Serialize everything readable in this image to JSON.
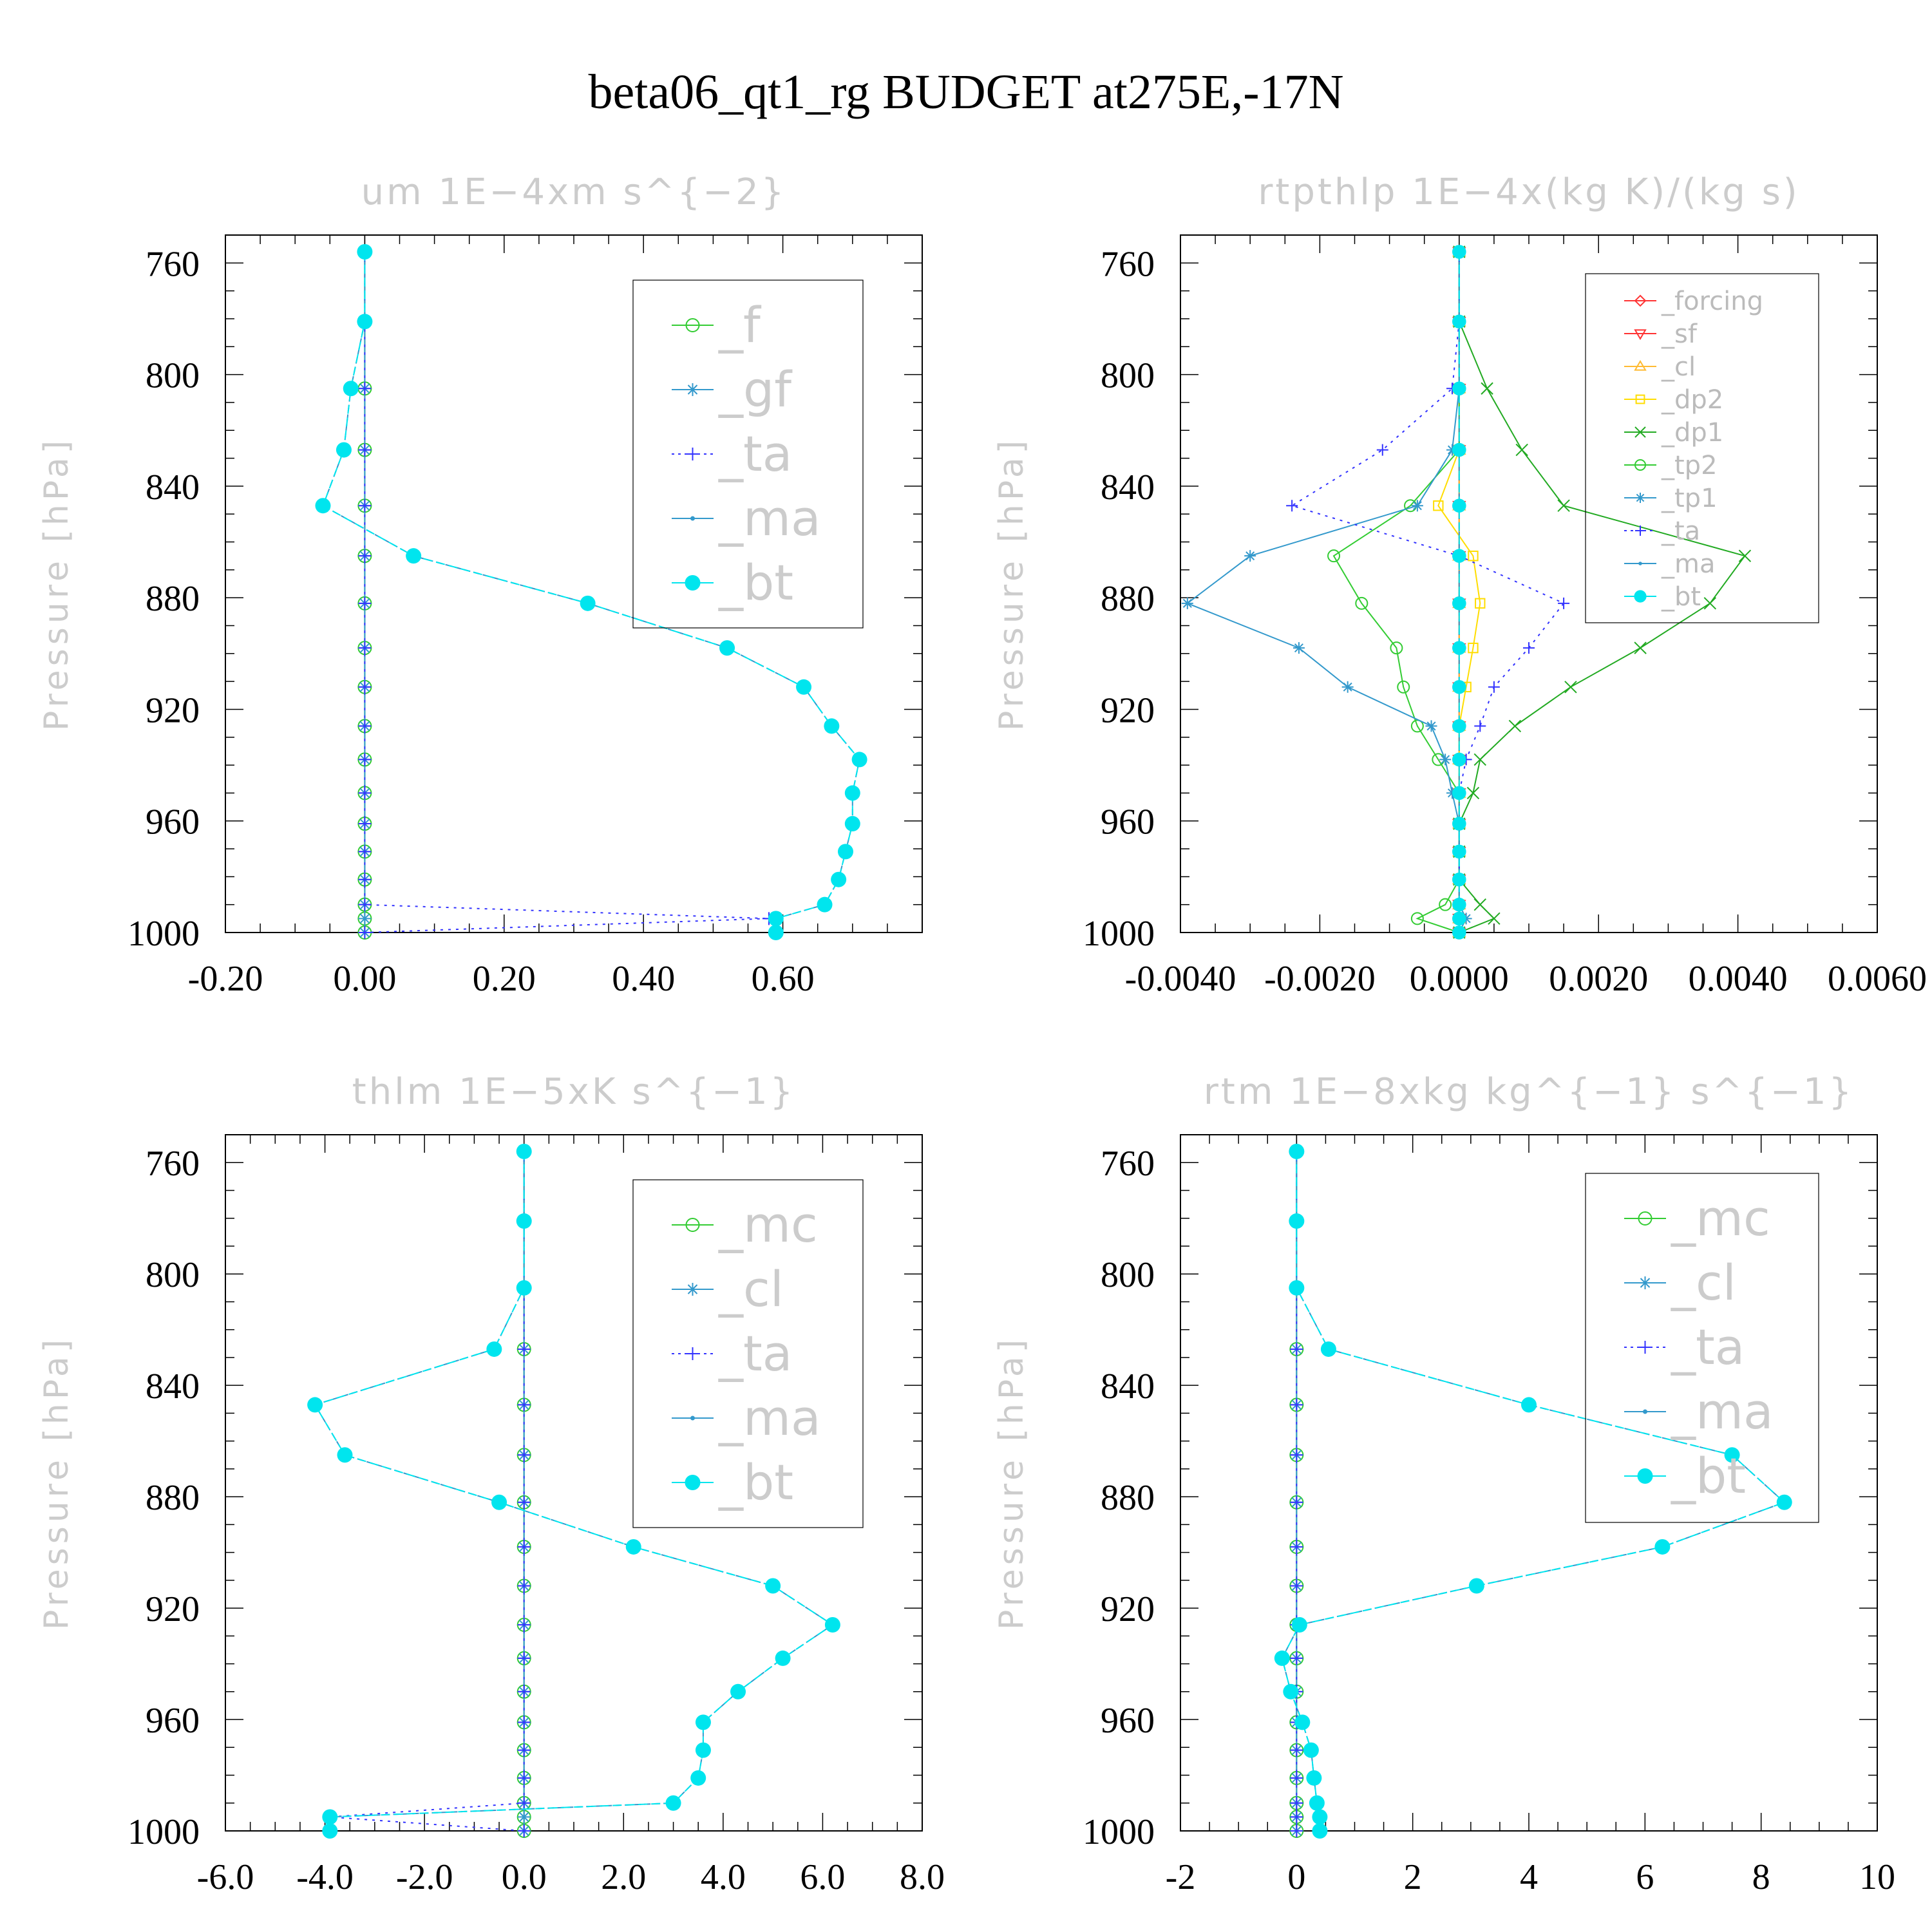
{
  "figure": {
    "title": "beta06_qt1_rg  BUDGET at275E,-17N",
    "ylabel": "Pressure [hPa]"
  },
  "colors": {
    "green": "#33cc33",
    "steelblue": "#3399cc",
    "blue": "#3333ff",
    "cyan": "#00e5ee",
    "red": "#ff3333",
    "orange": "#ffbb33",
    "yellow": "#ffdd00",
    "darkgreen": "#22aa22"
  },
  "chart_data": [
    {
      "type": "line",
      "title": "um  1E−4xm s^{−2}",
      "ylabel": "Pressure [hPa]",
      "xlim": [
        -0.2,
        0.8
      ],
      "xticks": [
        "-0.20",
        "0.00",
        "0.20",
        "0.40",
        "0.60"
      ],
      "xtick_values": [
        -0.2,
        0.0,
        0.2,
        0.4,
        0.6
      ],
      "ylim": [
        750,
        1000
      ],
      "yticks": [
        "760",
        "800",
        "840",
        "880",
        "920",
        "960",
        "1000"
      ],
      "y": [
        756,
        781,
        805,
        827,
        847,
        865,
        882,
        898,
        912,
        926,
        938,
        950,
        961,
        971,
        981,
        990,
        995,
        1000
      ],
      "legend_size": "big",
      "series": [
        {
          "name": "_f",
          "color": "#33cc33",
          "marker": "circle",
          "values": [
            0,
            0,
            0,
            0,
            0,
            0,
            0,
            0,
            0,
            0,
            0,
            0,
            0,
            0,
            0,
            0,
            0,
            0
          ]
        },
        {
          "name": "_gf",
          "color": "#3399cc",
          "marker": "star",
          "values": [
            0,
            0,
            0,
            0,
            0,
            0,
            0,
            0,
            0,
            0,
            0,
            0,
            0,
            0,
            0,
            0,
            0,
            0
          ]
        },
        {
          "name": "_ta",
          "color": "#3333ff",
          "marker": "plus",
          "dash": "dot",
          "values": [
            0,
            0,
            0,
            0,
            0,
            0,
            0,
            0,
            0,
            0,
            0,
            0,
            0,
            0,
            0,
            0,
            0.58,
            0
          ]
        },
        {
          "name": "_ma",
          "color": "#3399cc",
          "marker": "dot",
          "values": [
            0,
            0,
            -0.02,
            -0.03,
            -0.06,
            0.07,
            0.32,
            0.52,
            0.63,
            0.67,
            0.71,
            0.7,
            0.7,
            0.69,
            0.68,
            0.66,
            0.59,
            0.59
          ]
        },
        {
          "name": "_bt",
          "color": "#00e5ee",
          "marker": "filled",
          "values": [
            0,
            0,
            -0.02,
            -0.03,
            -0.06,
            0.07,
            0.32,
            0.52,
            0.63,
            0.67,
            0.71,
            0.7,
            0.7,
            0.69,
            0.68,
            0.66,
            0.59,
            0.59
          ]
        }
      ]
    },
    {
      "type": "line",
      "title": "rtpthlp  1E−4x(kg K)/(kg s)",
      "ylabel": "Pressure [hPa]",
      "xlim": [
        -0.004,
        0.006
      ],
      "xticks": [
        "-0.0040",
        "-0.0020",
        "0.0000",
        "0.0020",
        "0.0040",
        "0.0060"
      ],
      "xtick_values": [
        -0.004,
        -0.002,
        0.0,
        0.002,
        0.004,
        0.006
      ],
      "ylim": [
        750,
        1000
      ],
      "yticks": [
        "760",
        "800",
        "840",
        "880",
        "920",
        "960",
        "1000"
      ],
      "y": [
        756,
        781,
        805,
        827,
        847,
        865,
        882,
        898,
        912,
        926,
        938,
        950,
        961,
        971,
        981,
        990,
        995,
        1000
      ],
      "legend_size": "small",
      "series": [
        {
          "name": "_forcing",
          "color": "#ff3333",
          "marker": "diamond",
          "values": [
            0,
            0,
            0,
            0,
            0,
            0,
            0,
            0,
            0,
            0,
            0,
            0,
            0,
            0,
            0,
            0,
            0,
            0
          ]
        },
        {
          "name": "_sf",
          "color": "#ff3333",
          "marker": "tri-down",
          "values": [
            0,
            0,
            0,
            0,
            0,
            0,
            0,
            0,
            0,
            0,
            0,
            0,
            0,
            0,
            0,
            0,
            0,
            0
          ]
        },
        {
          "name": "_cl",
          "color": "#ffbb33",
          "marker": "tri-up",
          "values": [
            0,
            0,
            0,
            0,
            0,
            0,
            0,
            0,
            0,
            0,
            0,
            0,
            0,
            0,
            0,
            0,
            0,
            0
          ]
        },
        {
          "name": "_dp2",
          "color": "#ffdd00",
          "marker": "square",
          "values": [
            0,
            0,
            0,
            0,
            -0.0003,
            0.0002,
            0.0003,
            0.0002,
            0.0001,
            0,
            0,
            0,
            0,
            0,
            0,
            0,
            0,
            0
          ]
        },
        {
          "name": "_dp1",
          "color": "#22aa22",
          "marker": "x",
          "values": [
            0,
            0,
            0.0004,
            0.0009,
            0.0015,
            0.0041,
            0.0036,
            0.0026,
            0.0016,
            0.0008,
            0.0003,
            0.0002,
            0,
            0,
            0,
            0.0003,
            0.0005,
            0
          ]
        },
        {
          "name": "_tp2",
          "color": "#33cc33",
          "marker": "circle",
          "values": [
            0,
            0,
            0,
            0,
            -0.0007,
            -0.0018,
            -0.0014,
            -0.0009,
            -0.0008,
            -0.0006,
            -0.0003,
            0,
            0,
            0,
            0,
            -0.0002,
            -0.0006,
            0
          ]
        },
        {
          "name": "_tp1",
          "color": "#3399cc",
          "marker": "star",
          "values": [
            0,
            0,
            0,
            -0.0001,
            -0.0006,
            -0.003,
            -0.0039,
            -0.0023,
            -0.0016,
            -0.0004,
            -0.0002,
            -0.0001,
            0,
            0,
            0,
            0,
            0.0001,
            0
          ]
        },
        {
          "name": "_ta",
          "color": "#3333ff",
          "marker": "plus",
          "dash": "dot",
          "values": [
            0,
            0,
            -0.0001,
            -0.0011,
            -0.0024,
            0,
            0.0015,
            0.001,
            0.0005,
            0.0003,
            0.0001,
            0,
            0,
            0,
            0,
            0,
            0,
            0
          ]
        },
        {
          "name": "_ma",
          "color": "#3399cc",
          "marker": "dot",
          "values": [
            0,
            0,
            0,
            0,
            0,
            0,
            0,
            0,
            0,
            0,
            0,
            0,
            0,
            0,
            0,
            0,
            0,
            0
          ]
        },
        {
          "name": "_bt",
          "color": "#00e5ee",
          "marker": "filled",
          "values": [
            0,
            0,
            0,
            0,
            0,
            0,
            0,
            0,
            0,
            0,
            0,
            0,
            0,
            0,
            0,
            0,
            0,
            0
          ]
        }
      ]
    },
    {
      "type": "line",
      "title": "thlm  1E−5xK s^{−1}",
      "ylabel": "Pressure [hPa]",
      "xlim": [
        -6.0,
        8.0
      ],
      "xticks": [
        "-6.0",
        "-4.0",
        "-2.0",
        "0.0",
        "2.0",
        "4.0",
        "6.0",
        "8.0"
      ],
      "xtick_values": [
        -6,
        -4,
        -2,
        0,
        2,
        4,
        6,
        8
      ],
      "ylim": [
        750,
        1000
      ],
      "yticks": [
        "760",
        "800",
        "840",
        "880",
        "920",
        "960",
        "1000"
      ],
      "y": [
        756,
        781,
        805,
        827,
        847,
        865,
        882,
        898,
        912,
        926,
        938,
        950,
        961,
        971,
        981,
        990,
        995,
        1000
      ],
      "legend_size": "big",
      "series": [
        {
          "name": "_mc",
          "color": "#33cc33",
          "marker": "circle",
          "values": [
            0,
            0,
            0,
            0,
            0,
            0,
            0,
            0,
            0,
            0,
            0,
            0,
            0,
            0,
            0,
            0,
            0,
            0
          ]
        },
        {
          "name": "_cl",
          "color": "#3399cc",
          "marker": "star",
          "values": [
            0,
            0,
            0,
            0,
            0,
            0,
            0,
            0,
            0,
            0,
            0,
            0,
            0,
            0,
            0,
            0,
            0,
            0
          ]
        },
        {
          "name": "_ta",
          "color": "#3333ff",
          "marker": "plus",
          "dash": "dot",
          "values": [
            0,
            0,
            0,
            0,
            0,
            0,
            0,
            0,
            0,
            0,
            0,
            0,
            0,
            0,
            0,
            0,
            -3.9,
            0
          ]
        },
        {
          "name": "_ma",
          "color": "#3399cc",
          "marker": "dot",
          "values": [
            0,
            0,
            0,
            -0.6,
            -4.2,
            -3.6,
            -0.5,
            2.2,
            5.0,
            6.2,
            5.2,
            4.3,
            3.6,
            3.6,
            3.5,
            3.0,
            -3.9,
            -3.9
          ]
        },
        {
          "name": "_bt",
          "color": "#00e5ee",
          "marker": "filled",
          "values": [
            0,
            0,
            0,
            -0.6,
            -4.2,
            -3.6,
            -0.5,
            2.2,
            5.0,
            6.2,
            5.2,
            4.3,
            3.6,
            3.6,
            3.5,
            3.0,
            -3.9,
            -3.9
          ]
        }
      ]
    },
    {
      "type": "line",
      "title": "rtm  1E−8xkg kg^{−1} s^{−1}",
      "ylabel": "Pressure [hPa]",
      "xlim": [
        -2,
        10
      ],
      "xticks": [
        "-2",
        "0",
        "2",
        "4",
        "6",
        "8",
        "10"
      ],
      "xtick_values": [
        -2,
        0,
        2,
        4,
        6,
        8,
        10
      ],
      "ylim": [
        750,
        1000
      ],
      "yticks": [
        "760",
        "800",
        "840",
        "880",
        "920",
        "960",
        "1000"
      ],
      "y": [
        756,
        781,
        805,
        827,
        847,
        865,
        882,
        898,
        912,
        926,
        938,
        950,
        961,
        971,
        981,
        990,
        995,
        1000
      ],
      "legend_size": "big",
      "series": [
        {
          "name": "_mc",
          "color": "#33cc33",
          "marker": "circle",
          "values": [
            0,
            0,
            0,
            0,
            0,
            0,
            0,
            0,
            0,
            0,
            0,
            0,
            0,
            0,
            0,
            0,
            0,
            0
          ]
        },
        {
          "name": "_cl",
          "color": "#3399cc",
          "marker": "star",
          "values": [
            0,
            0,
            0,
            0,
            0,
            0,
            0,
            0,
            0,
            0,
            0,
            0,
            0,
            0,
            0,
            0,
            0,
            0
          ]
        },
        {
          "name": "_ta",
          "color": "#3333ff",
          "marker": "plus",
          "dash": "dot",
          "values": [
            0,
            0,
            0,
            0,
            0,
            0,
            0,
            0,
            0,
            0,
            0,
            0,
            0,
            0,
            0,
            0,
            0,
            0
          ]
        },
        {
          "name": "_ma",
          "color": "#3399cc",
          "marker": "dot",
          "values": [
            0,
            0,
            0,
            0.55,
            4.0,
            7.5,
            8.4,
            6.3,
            3.1,
            0.05,
            -0.25,
            -0.1,
            0.1,
            0.25,
            0.3,
            0.35,
            0.4,
            0.4
          ]
        },
        {
          "name": "_bt",
          "color": "#00e5ee",
          "marker": "filled",
          "values": [
            0,
            0,
            0,
            0.55,
            4.0,
            7.5,
            8.4,
            6.3,
            3.1,
            0.05,
            -0.25,
            -0.1,
            0.1,
            0.25,
            0.3,
            0.35,
            0.4,
            0.4
          ]
        }
      ]
    }
  ]
}
